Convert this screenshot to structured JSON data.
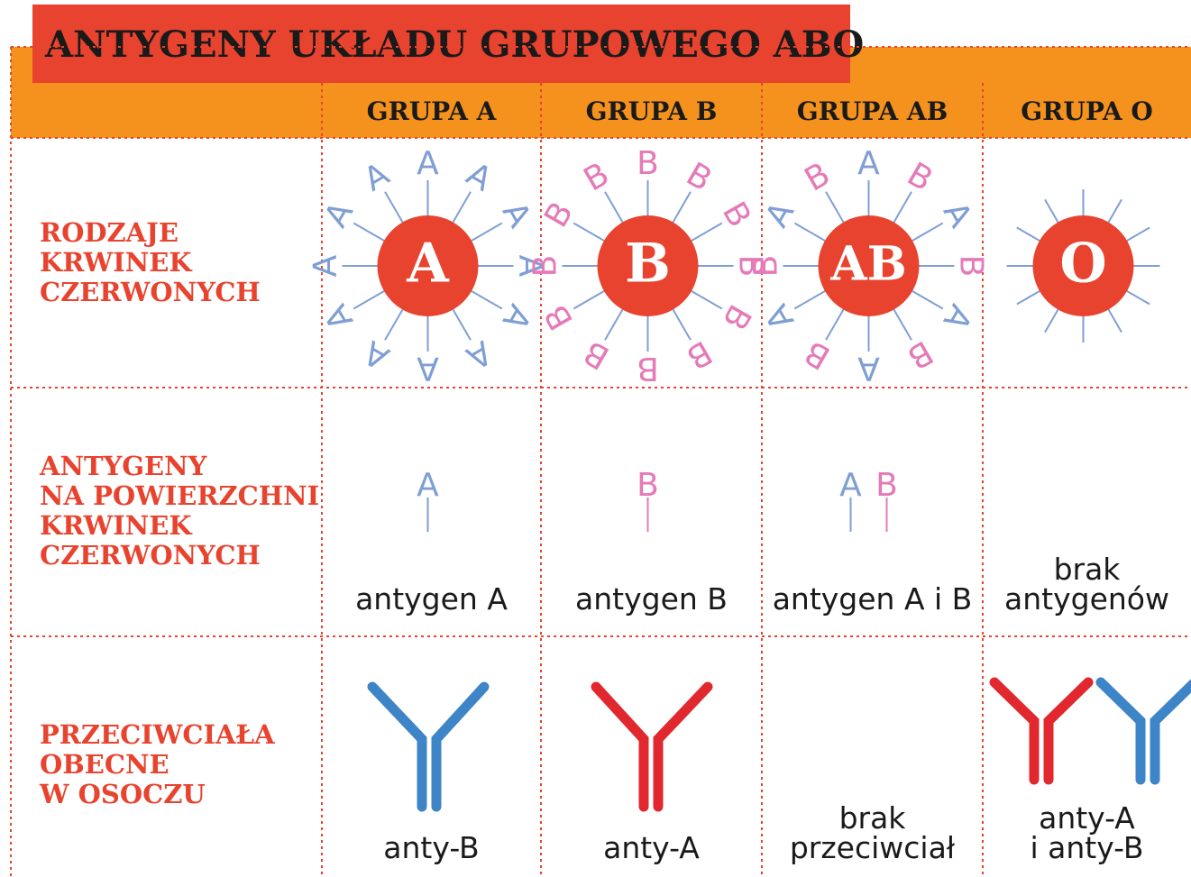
{
  "title": "ANTYGENY UKŁADU GRUPOWEGO ABO",
  "columns": [
    "GRUPA A",
    "GRUPA B",
    "GRUPA AB",
    "GRUPA O"
  ],
  "rows": [
    {
      "label": [
        "RODZAJE",
        "KRWINEK",
        "CZERWONYCH"
      ]
    },
    {
      "label": [
        "ANTYGENY",
        "NA POWIERZCHNI",
        "KRWINEK",
        "CZERWONYCH"
      ]
    },
    {
      "label": [
        "PRZECIWCIAŁA",
        "OBECNE",
        "W OSOCZU"
      ]
    }
  ],
  "antigen_colors": {
    "A": "#7f9fd4",
    "B": "#e57ab8"
  },
  "cells": [
    {
      "label": "A",
      "antigens": [
        "A"
      ],
      "antigen_text": [
        "antygen A"
      ],
      "antibody_text": [
        "anty-B"
      ]
    },
    {
      "label": "B",
      "antigens": [
        "B"
      ],
      "antigen_text": [
        "antygen B"
      ],
      "antibody_text": [
        "anty-A"
      ]
    },
    {
      "label": "AB",
      "antigens": [
        "A",
        "B"
      ],
      "antigen_text": [
        "antygen A i B"
      ],
      "antibody_text": [
        "brak",
        "przeciwciał"
      ]
    },
    {
      "label": "O",
      "antigens": [],
      "antigen_text": [
        "brak",
        "antygenów"
      ],
      "antibody_text": [
        "anty-A",
        "i anty-B"
      ]
    }
  ]
}
